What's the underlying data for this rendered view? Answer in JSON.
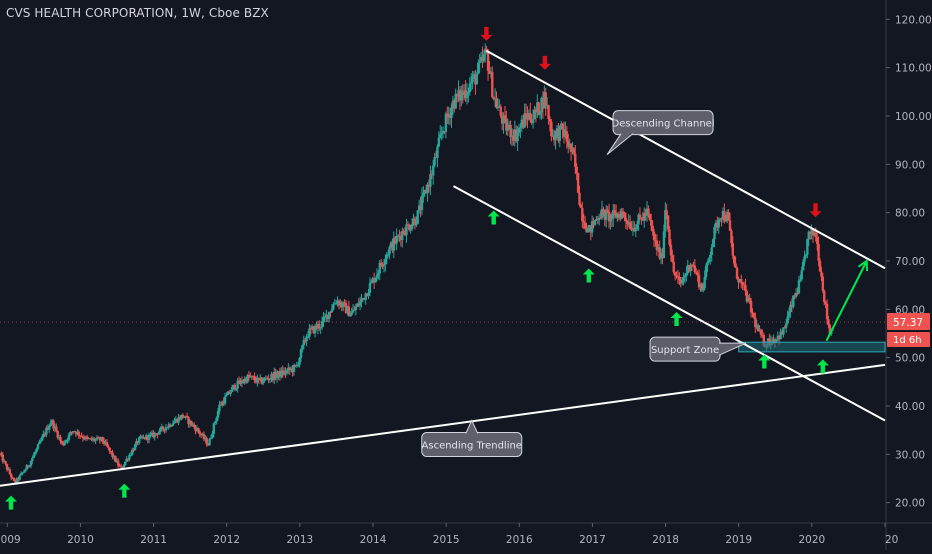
{
  "header": {
    "title": "CVS HEALTH CORPORATION, 1W, Cboe BZX"
  },
  "colors": {
    "background": "#131722",
    "up": "#26a69a",
    "down": "#ef5350",
    "axis_text": "#b2b5be",
    "line": "#ffffff",
    "arrow_up": "#00e64d",
    "arrow_down": "#e0101a",
    "callout_bg": "#5d606b",
    "support_zone": "#1f6f78"
  },
  "chart_data": {
    "type": "candlestick",
    "title": "CVS HEALTH CORPORATION, 1W, Cboe BZX",
    "x_ticks": [
      "2009",
      "2010",
      "2011",
      "2012",
      "2013",
      "2014",
      "2015",
      "2016",
      "2017",
      "2018",
      "2019",
      "2020",
      "20"
    ],
    "y_ticks": [
      "120.00",
      "110.00",
      "100.00",
      "90.00",
      "80.00",
      "70.00",
      "60.00",
      "50.00",
      "40.00",
      "30.00",
      "20.00"
    ],
    "ylim": [
      16,
      124
    ],
    "xlim": [
      2008.9,
      2021.0
    ],
    "price_path": [
      [
        2008.9,
        30
      ],
      [
        2009.1,
        24
      ],
      [
        2009.3,
        28
      ],
      [
        2009.6,
        37
      ],
      [
        2009.75,
        32
      ],
      [
        2009.9,
        35
      ],
      [
        2010.1,
        33
      ],
      [
        2010.3,
        33
      ],
      [
        2010.55,
        27
      ],
      [
        2010.8,
        33
      ],
      [
        2011.0,
        34
      ],
      [
        2011.2,
        36
      ],
      [
        2011.4,
        38
      ],
      [
        2011.6,
        35
      ],
      [
        2011.75,
        32
      ],
      [
        2011.9,
        40
      ],
      [
        2012.1,
        44
      ],
      [
        2012.3,
        46
      ],
      [
        2012.45,
        45
      ],
      [
        2012.6,
        46
      ],
      [
        2012.8,
        47
      ],
      [
        2012.95,
        48
      ],
      [
        2013.1,
        55
      ],
      [
        2013.3,
        57
      ],
      [
        2013.5,
        62
      ],
      [
        2013.7,
        59
      ],
      [
        2013.85,
        62
      ],
      [
        2014.0,
        66
      ],
      [
        2014.2,
        72
      ],
      [
        2014.4,
        76
      ],
      [
        2014.6,
        79
      ],
      [
        2014.8,
        88
      ],
      [
        2014.95,
        97
      ],
      [
        2015.1,
        103
      ],
      [
        2015.25,
        105
      ],
      [
        2015.4,
        108
      ],
      [
        2015.55,
        113
      ],
      [
        2015.65,
        104
      ],
      [
        2015.8,
        98
      ],
      [
        2015.95,
        96
      ],
      [
        2016.1,
        100
      ],
      [
        2016.2,
        100
      ],
      [
        2016.35,
        104
      ],
      [
        2016.45,
        96
      ],
      [
        2016.6,
        97
      ],
      [
        2016.75,
        91
      ],
      [
        2016.85,
        80
      ],
      [
        2016.95,
        76
      ],
      [
        2017.1,
        80
      ],
      [
        2017.25,
        79
      ],
      [
        2017.4,
        80
      ],
      [
        2017.55,
        77
      ],
      [
        2017.75,
        80
      ],
      [
        2017.85,
        74
      ],
      [
        2017.95,
        70
      ],
      [
        2018.0,
        82
      ],
      [
        2018.1,
        68
      ],
      [
        2018.2,
        65
      ],
      [
        2018.35,
        70
      ],
      [
        2018.5,
        64
      ],
      [
        2018.65,
        75
      ],
      [
        2018.75,
        80
      ],
      [
        2018.85,
        79
      ],
      [
        2018.95,
        68
      ],
      [
        2019.1,
        63
      ],
      [
        2019.25,
        56
      ],
      [
        2019.35,
        53
      ],
      [
        2019.5,
        54
      ],
      [
        2019.6,
        55
      ],
      [
        2019.75,
        62
      ],
      [
        2019.85,
        66
      ],
      [
        2019.95,
        75
      ],
      [
        2020.05,
        76
      ],
      [
        2020.12,
        68
      ],
      [
        2020.2,
        59
      ],
      [
        2020.25,
        55
      ],
      [
        2020.3,
        57.37
      ]
    ],
    "last_price": "57.37",
    "countdown": "1d 6h",
    "lines": [
      {
        "name": "ascending-trendline",
        "from": [
          2008.9,
          23.5
        ],
        "to": [
          2021.0,
          48.5
        ]
      },
      {
        "name": "channel-upper",
        "from": [
          2015.55,
          113.5
        ],
        "to": [
          2021.0,
          68.5
        ]
      },
      {
        "name": "channel-lower",
        "from": [
          2015.1,
          85.5
        ],
        "to": [
          2021.0,
          37
        ]
      }
    ],
    "support_zone": {
      "y_range": [
        51.2,
        53.2
      ],
      "x_range": [
        2019.0,
        2021.0
      ]
    },
    "annotations": [
      {
        "text": "Descending Channel",
        "anchor": [
          2017.2,
          92
        ]
      },
      {
        "text": "Support Zone",
        "anchor": [
          2019.1,
          53
        ]
      },
      {
        "text": "Ascending Trendline",
        "anchor": [
          2015.35,
          37
        ]
      }
    ],
    "up_arrows": [
      [
        2009.05,
        20
      ],
      [
        2010.6,
        22.5
      ],
      [
        2015.65,
        79
      ],
      [
        2016.95,
        67
      ],
      [
        2018.15,
        58
      ],
      [
        2019.35,
        49.2
      ],
      [
        2020.15,
        48.2
      ]
    ],
    "down_arrows": [
      [
        2015.55,
        117
      ],
      [
        2016.35,
        111
      ],
      [
        2020.05,
        80.5
      ]
    ],
    "projection": {
      "from": [
        2020.2,
        53.5
      ],
      "to": [
        2020.75,
        70
      ]
    }
  }
}
